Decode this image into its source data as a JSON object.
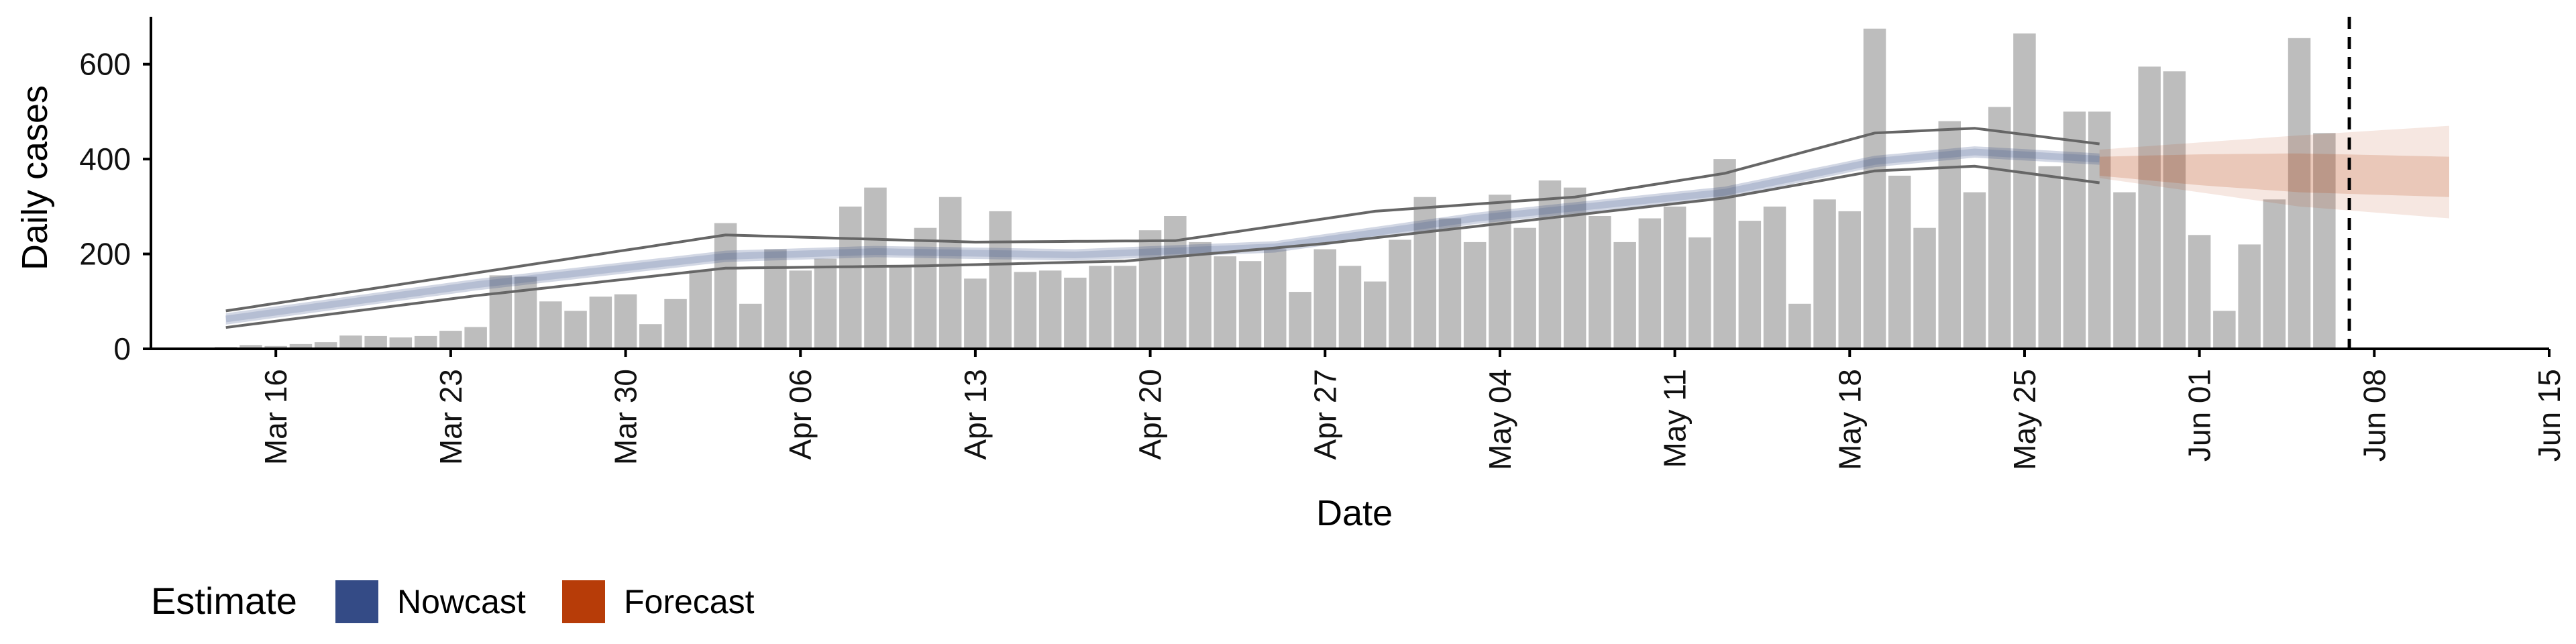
{
  "chart_data": {
    "type": "bar",
    "xlabel": "Date",
    "ylabel": "Daily cases",
    "ylim": [
      0,
      700
    ],
    "yticks": [
      0,
      200,
      400,
      600
    ],
    "x_range": [
      "2020-03-11",
      "2020-06-15"
    ],
    "x_tick_labels": [
      "Mar 16",
      "Mar 23",
      "Mar 30",
      "Apr 06",
      "Apr 13",
      "Apr 20",
      "Apr 27",
      "May 04",
      "May 11",
      "May 18",
      "May 25",
      "Jun 01",
      "Jun 08",
      "Jun 15"
    ],
    "x_tick_dates": [
      "2020-03-16",
      "2020-03-23",
      "2020-03-30",
      "2020-04-06",
      "2020-04-13",
      "2020-04-20",
      "2020-04-27",
      "2020-05-04",
      "2020-05-11",
      "2020-05-18",
      "2020-05-25",
      "2020-06-01",
      "2020-06-08",
      "2020-06-15"
    ],
    "bars": {
      "color": "#bdbdbd",
      "start_date": "2020-03-14",
      "values": [
        4,
        8,
        6,
        10,
        14,
        28,
        27,
        24,
        27,
        38,
        46,
        155,
        152,
        100,
        80,
        110,
        115,
        52,
        105,
        165,
        265,
        95,
        210,
        165,
        190,
        300,
        340,
        175,
        255,
        320,
        148,
        290,
        162,
        165,
        150,
        175,
        175,
        250,
        280,
        225,
        195,
        185,
        210,
        120,
        210,
        175,
        142,
        230,
        320,
        275,
        225,
        325,
        255,
        355,
        340,
        280,
        225,
        275,
        300,
        235,
        400,
        270,
        300,
        95,
        315,
        290,
        675,
        365,
        255,
        480,
        330,
        510,
        665,
        385,
        500,
        500,
        330,
        595,
        585,
        240,
        80,
        220,
        315,
        655,
        455
      ]
    },
    "nowcast": {
      "color": "#344b86",
      "start_date": "2020-03-14",
      "end_date": "2020-05-28",
      "median_keys": [
        [
          0,
          63
        ],
        [
          10,
          135
        ],
        [
          20,
          195
        ],
        [
          26,
          205
        ],
        [
          34,
          198
        ],
        [
          42,
          215
        ],
        [
          50,
          275
        ],
        [
          60,
          330
        ],
        [
          66,
          395
        ],
        [
          70,
          415
        ],
        [
          75,
          400
        ]
      ],
      "inner_half_width": 12,
      "ci90_lower_keys": [
        [
          0,
          45
        ],
        [
          10,
          112
        ],
        [
          20,
          170
        ],
        [
          28,
          175
        ],
        [
          36,
          185
        ],
        [
          44,
          222
        ],
        [
          52,
          270
        ],
        [
          60,
          318
        ],
        [
          66,
          375
        ],
        [
          70,
          385
        ],
        [
          75,
          350
        ]
      ],
      "ci90_upper_keys": [
        [
          0,
          80
        ],
        [
          10,
          160
        ],
        [
          20,
          240
        ],
        [
          30,
          225
        ],
        [
          38,
          228
        ],
        [
          46,
          290
        ],
        [
          54,
          320
        ],
        [
          60,
          370
        ],
        [
          66,
          455
        ],
        [
          70,
          465
        ],
        [
          75,
          432
        ]
      ]
    },
    "forecast": {
      "color": "#b73c08",
      "start_date": "2020-05-28",
      "end_date": "2020-06-11",
      "median_keys": [
        [
          0,
          385
        ],
        [
          4,
          380
        ],
        [
          8,
          375
        ],
        [
          14,
          368
        ]
      ],
      "inner_lower_keys": [
        [
          0,
          365
        ],
        [
          4,
          345
        ],
        [
          8,
          330
        ],
        [
          14,
          320
        ]
      ],
      "inner_upper_keys": [
        [
          0,
          405
        ],
        [
          4,
          410
        ],
        [
          8,
          412
        ],
        [
          14,
          405
        ]
      ],
      "outer_lower_keys": [
        [
          0,
          360
        ],
        [
          4,
          330
        ],
        [
          8,
          300
        ],
        [
          14,
          275
        ]
      ],
      "outer_upper_keys": [
        [
          0,
          420
        ],
        [
          4,
          435
        ],
        [
          8,
          450
        ],
        [
          14,
          470
        ]
      ]
    },
    "vline_date": "2020-06-07",
    "vline_style": "dashed",
    "grid": false,
    "legend": {
      "title": "Estimate",
      "position": "bottom-left",
      "entries": [
        {
          "label": "Nowcast",
          "color": "#344b86"
        },
        {
          "label": "Forecast",
          "color": "#b73c08"
        }
      ]
    }
  }
}
